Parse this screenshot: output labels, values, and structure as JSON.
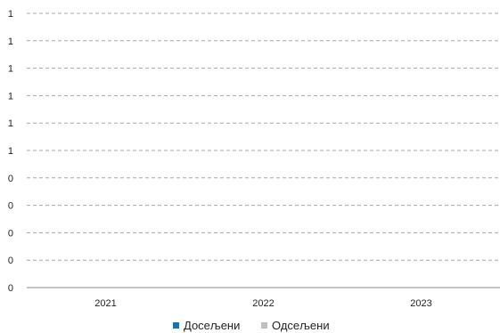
{
  "chart_data": {
    "type": "bar",
    "categories": [
      "2021",
      "2022",
      "2023"
    ],
    "series": [
      {
        "name": "Досељени",
        "color": "#1f6fb5",
        "values": [
          0,
          0,
          0
        ]
      },
      {
        "name": "Одсељени",
        "color": "#c0c0c0",
        "values": [
          0,
          0,
          0
        ]
      }
    ],
    "y_tick_labels": [
      "0",
      "0",
      "0",
      "0",
      "0",
      "1",
      "1",
      "1",
      "1",
      "1",
      "1"
    ],
    "ylim": [
      0,
      1
    ],
    "grid": true,
    "grid_style": "dashed",
    "legend_position": "bottom"
  }
}
